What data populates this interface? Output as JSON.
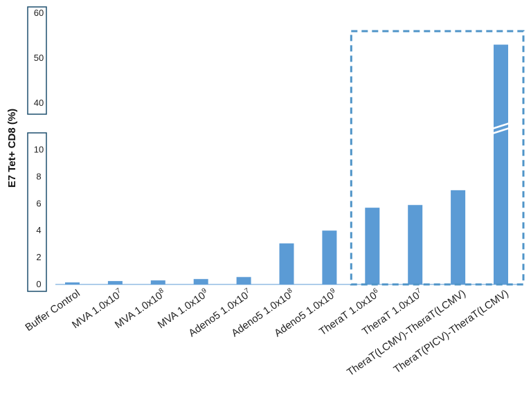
{
  "chart_data": {
    "type": "bar",
    "ylabel": "E7 Tet+ CD8 (%)",
    "yaxis_lower": {
      "range": [
        0,
        11
      ],
      "ticks": [
        "0",
        "2",
        "4",
        "6",
        "8",
        "10"
      ]
    },
    "yaxis_upper": {
      "range": [
        36.5,
        60
      ],
      "ticks": [
        "40",
        "50",
        "60"
      ]
    },
    "axis_break": true,
    "highlight_box": {
      "from_category_index": 7,
      "to_category_index": 10,
      "style": "dashed",
      "color": "#4f94c8"
    },
    "bar_color": "#5b9bd5",
    "categories": [
      {
        "label": "Buffer Control",
        "sup": ""
      },
      {
        "label": "MVA 1.0x10",
        "sup": "7"
      },
      {
        "label": "MVA 1.0x10",
        "sup": "8"
      },
      {
        "label": "MVA 1.0x10",
        "sup": "9"
      },
      {
        "label": "Adeno5 1.0x10",
        "sup": "7"
      },
      {
        "label": "Adeno5 1.0x10",
        "sup": "8"
      },
      {
        "label": "Adeno5 1.0x10",
        "sup": "9"
      },
      {
        "label": "TheraT 1.0x10",
        "sup": "6"
      },
      {
        "label": "TheraT 1.0x10",
        "sup": "7"
      },
      {
        "label": "TheraT(LCMV)-TheraT(LCMV)",
        "sup": ""
      },
      {
        "label": "TheraT(PICV)-TheraT(LCMV)",
        "sup": ""
      }
    ],
    "values": [
      0.15,
      0.25,
      0.3,
      0.4,
      0.55,
      3.05,
      4.0,
      5.7,
      5.9,
      7.0,
      53
    ]
  }
}
